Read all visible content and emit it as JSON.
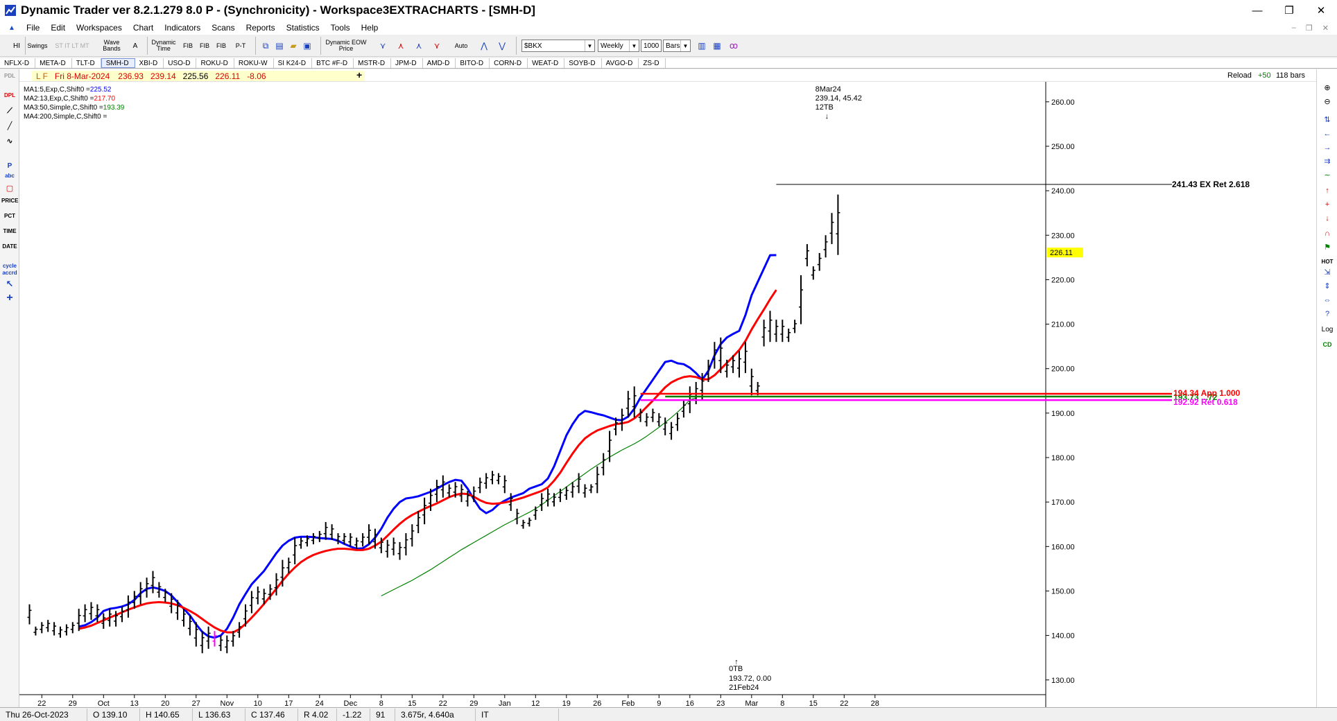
{
  "window": {
    "title": "Dynamic Trader ver 8.2.1.279 8.0 P - (Synchronicity) - Workspace3EXTRACHARTS - [SMH-D]",
    "minimize": "—",
    "restore": "❐",
    "close": "✕"
  },
  "menu": [
    "File",
    "Edit",
    "Workspaces",
    "Chart",
    "Indicators",
    "Scans",
    "Reports",
    "Statistics",
    "Tools",
    "Help"
  ],
  "toolbar": {
    "hi": "HI",
    "swings": "Swings",
    "st_it_lt_mt": "ST IT LT MT",
    "wave_bands": "Wave Bands",
    "a": "A",
    "dynamic_time": "Dynamic Time",
    "fib": "FIB",
    "p_t": "P-T",
    "dynamic_eow_price": "Dynamic EOW Price",
    "auto": "Auto",
    "symbol_value": "$BKX",
    "period_value": "Weekly",
    "bars_count": "1000",
    "bars_label": "Bars"
  },
  "symbol_tabs": [
    "NFLX-D",
    "META-D",
    "TLT-D",
    "SMH-D",
    "XBI-D",
    "USO-D",
    "ROKU-D",
    "ROKU-W",
    "SI K24-D",
    "BTC #F-D",
    "MSTR-D",
    "JPM-D",
    "AMD-D",
    "BITO-D",
    "CORN-D",
    "WEAT-D",
    "SOYB-D",
    "AVGO-D",
    "ZS-D"
  ],
  "active_tab": "SMH-D",
  "info": {
    "flags": "L F",
    "date": "Fri 8-Mar-2024",
    "open": "236.93",
    "high": "239.14",
    "low": "225.56",
    "close": "226.11",
    "change": "-8.06",
    "plus": "+",
    "reload": "Reload",
    "reload_inc": "+50",
    "bar_count": "118 bars"
  },
  "left_tools": [
    "PDL",
    "DPL",
    "P",
    "abc",
    "PRICE",
    "PCT",
    "TIME",
    "DATE",
    "cycle",
    "accrd"
  ],
  "right_tools": [
    "HOT",
    "Log",
    "CD"
  ],
  "ma_legend": [
    {
      "label": "MA1:5,Exp,C,Shift0 =",
      "value": "225.52",
      "color": "#0000ff"
    },
    {
      "label": "MA2:13,Exp,C,Shift0 =",
      "value": "217.70",
      "color": "#ff0000"
    },
    {
      "label": "MA3:50,Simple,C,Shift0 =",
      "value": "193.39",
      "color": "#008000"
    },
    {
      "label": "MA4:200,Simple,C,Shift0 =",
      "value": "",
      "color": "#000000"
    }
  ],
  "annotations": {
    "top_date": "8Mar24",
    "top_values": "239.14, 45.42",
    "top_tb": "12TB",
    "bottom_tb": "0TB",
    "bottom_values": "193.72, 0.00",
    "bottom_date": "21Feb24",
    "level_top": "241.43 EX Ret 2.618",
    "level_a": "194.34 App 1.000",
    "level_b": "193.73 ...72",
    "level_c": "192.92 Ret 0.618",
    "last_price": "226.11"
  },
  "chart_data": {
    "type": "ohlc",
    "y_ticks": [
      130,
      140,
      150,
      160,
      170,
      180,
      190,
      200,
      210,
      220,
      230,
      240,
      250,
      260
    ],
    "ylim": [
      127,
      262
    ],
    "x_ticks": [
      "22",
      "29",
      "Oct",
      "13",
      "20",
      "27",
      "Nov",
      "10",
      "17",
      "24",
      "Dec",
      "8",
      "15",
      "22",
      "29",
      "Jan",
      "12",
      "19",
      "26",
      "Feb",
      "9",
      "16",
      "23",
      "Mar",
      "8",
      "15",
      "22",
      "28"
    ],
    "bars": [
      [
        147,
        142.5
      ],
      [
        142,
        140
      ],
      [
        143,
        140.5
      ],
      [
        143.5,
        140.8
      ],
      [
        143,
        140
      ],
      [
        142,
        139.5
      ],
      [
        142.5,
        140
      ],
      [
        143,
        140.5
      ],
      [
        146,
        141
      ],
      [
        147,
        143
      ],
      [
        147.5,
        143.5
      ],
      [
        147,
        143
      ],
      [
        145,
        141.5
      ],
      [
        146,
        142
      ],
      [
        145.5,
        142
      ],
      [
        146.5,
        143
      ],
      [
        149,
        144
      ],
      [
        150,
        146
      ],
      [
        152,
        147
      ],
      [
        153,
        148.5
      ],
      [
        154.5,
        149.5
      ],
      [
        152,
        148.5
      ],
      [
        150.5,
        147.5
      ],
      [
        149.5,
        145
      ],
      [
        148,
        143.5
      ],
      [
        146,
        142
      ],
      [
        144.5,
        140
      ],
      [
        143,
        137.5
      ],
      [
        141,
        136
      ],
      [
        142,
        137
      ],
      [
        141,
        137.5
      ],
      [
        140,
        136.5
      ],
      [
        140,
        136
      ],
      [
        141,
        137.5
      ],
      [
        143,
        139.5
      ],
      [
        147,
        142
      ],
      [
        150,
        145
      ],
      [
        151,
        147
      ],
      [
        150.5,
        147
      ],
      [
        151.5,
        148
      ],
      [
        154,
        149
      ],
      [
        157,
        151
      ],
      [
        157.5,
        154
      ],
      [
        162,
        156
      ],
      [
        162,
        159.5
      ],
      [
        162.5,
        160
      ],
      [
        163,
        160.5
      ],
      [
        163.5,
        161
      ],
      [
        165.5,
        161.5
      ],
      [
        165,
        161.5
      ],
      [
        163,
        160.5
      ],
      [
        163,
        160.5
      ],
      [
        163,
        160
      ],
      [
        162,
        159.5
      ],
      [
        163,
        160
      ],
      [
        165,
        160.5
      ],
      [
        164,
        159.5
      ],
      [
        162,
        158.5
      ],
      [
        161.5,
        157.5
      ],
      [
        162,
        158
      ],
      [
        161,
        157
      ],
      [
        163,
        158
      ],
      [
        165,
        160
      ],
      [
        168,
        163
      ],
      [
        171,
        165
      ],
      [
        173,
        168
      ],
      [
        175,
        170
      ],
      [
        176,
        171
      ],
      [
        174,
        171
      ],
      [
        174.5,
        171
      ],
      [
        174,
        170
      ],
      [
        172.5,
        169
      ],
      [
        173.5,
        170
      ],
      [
        175.5,
        172
      ],
      [
        176.5,
        173
      ],
      [
        177,
        174
      ],
      [
        176.5,
        174
      ],
      [
        176,
        172
      ],
      [
        172,
        168
      ],
      [
        168.5,
        165
      ],
      [
        166,
        164
      ],
      [
        166.5,
        164.5
      ],
      [
        169,
        166
      ],
      [
        172,
        168
      ],
      [
        173,
        169
      ],
      [
        172,
        169
      ],
      [
        173,
        170
      ],
      [
        173.5,
        170.5
      ],
      [
        174.5,
        171
      ],
      [
        176.5,
        172
      ],
      [
        174,
        171
      ],
      [
        174,
        172
      ],
      [
        178,
        172
      ],
      [
        181,
        176
      ],
      [
        186,
        179
      ],
      [
        189,
        185
      ],
      [
        191,
        186
      ],
      [
        195,
        189
      ],
      [
        196,
        189
      ],
      [
        191,
        188
      ],
      [
        190,
        187
      ],
      [
        191,
        188
      ],
      [
        190,
        187
      ],
      [
        189,
        185
      ],
      [
        188,
        184
      ],
      [
        190,
        186
      ],
      [
        193,
        189
      ],
      [
        196,
        190
      ],
      [
        197,
        192
      ],
      [
        199,
        193
      ],
      [
        202,
        197
      ],
      [
        206,
        200
      ],
      [
        207,
        199
      ],
      [
        202,
        198
      ],
      [
        203,
        199
      ],
      [
        204,
        198
      ],
      [
        206,
        199
      ],
      [
        200,
        194
      ],
      [
        197,
        194
      ],
      [
        211,
        205
      ],
      [
        213,
        206
      ],
      [
        211,
        206
      ],
      [
        211,
        206
      ],
      [
        209,
        206
      ],
      [
        211,
        208
      ],
      [
        221,
        210
      ],
      [
        228,
        223
      ],
      [
        223,
        220
      ],
      [
        226,
        222
      ],
      [
        230,
        225
      ],
      [
        235,
        228
      ],
      [
        239.14,
        225.56
      ]
    ],
    "series": [
      {
        "name": "MA1:5,Exp,C,Shift0",
        "color": "#0000ff",
        "start": 8,
        "values": [
          142,
          142.3,
          143,
          144,
          145.5,
          146,
          146.2,
          146.5,
          147,
          148,
          149.5,
          150.5,
          150.8,
          150.5,
          150,
          149,
          147.5,
          146,
          144.5,
          142.5,
          140.8,
          139.8,
          139.5,
          140,
          141.5,
          144,
          147,
          149.3,
          151.5,
          153,
          154.5,
          156.5,
          158.5,
          160.2,
          161.3,
          162,
          162.2,
          162.2,
          162.1,
          161.9,
          161.8,
          161.7,
          161.3,
          160.6,
          160,
          159.5,
          159.6,
          160.5,
          162,
          164,
          166.5,
          168.5,
          170,
          170.8,
          171,
          171.3,
          171.8,
          172.3,
          173,
          173.8,
          174.5,
          175,
          174.8,
          173,
          170.6,
          168.5,
          167.5,
          168.2,
          169.5,
          170.3,
          171,
          171.5,
          172,
          173,
          173.5,
          174,
          175.3,
          178,
          181.5,
          185,
          187.5,
          189.5,
          190.5,
          190.2,
          189.8,
          189.5,
          189,
          188.5,
          188.4,
          189.2,
          191,
          193.5,
          195.5,
          197.5,
          199.5,
          201.5,
          201.8,
          201.2,
          201,
          200.2,
          199,
          197.5,
          199.5,
          203,
          205.5,
          207,
          207.8,
          208.5,
          212,
          216.5,
          219.5,
          222.5,
          225.5,
          225.52
        ]
      },
      {
        "name": "MA2:13,Exp,C,Shift0",
        "color": "#ff0000",
        "start": 8,
        "values": [
          141.5,
          141.8,
          142.2,
          142.8,
          143.4,
          144,
          144.6,
          145.2,
          145.8,
          146.3,
          146.8,
          147.2,
          147.4,
          147.5,
          147.4,
          147.2,
          146.8,
          146.2,
          145.5,
          144.7,
          143.7,
          142.7,
          141.8,
          141.1,
          140.7,
          140.7,
          141.4,
          142.6,
          144,
          145.5,
          147.1,
          148.8,
          150.5,
          152.3,
          153.9,
          155.3,
          156.5,
          157.4,
          158.1,
          158.6,
          159,
          159.3,
          159.5,
          159.5,
          159.4,
          159.2,
          159.2,
          159.5,
          160.2,
          161.1,
          162.4,
          163.8,
          165.1,
          166.2,
          167.1,
          167.8,
          168.5,
          169.1,
          169.7,
          170.4,
          171.1,
          171.6,
          171.9,
          171.8,
          171.2,
          170.4,
          169.8,
          169.6,
          169.7,
          169.9,
          170.2,
          170.6,
          171,
          171.5,
          172,
          172.5,
          173.3,
          174.8,
          176.6,
          178.8,
          180.9,
          182.8,
          184.3,
          185.3,
          186.1,
          186.6,
          187.1,
          187.5,
          187.7,
          188,
          188.8,
          190,
          191.4,
          192.8,
          194.3,
          195.8,
          196.9,
          197.6,
          198.1,
          198.3,
          198.1,
          197.6,
          197.6,
          198.5,
          199.9,
          201.3,
          202.7,
          204.2,
          206.2,
          208.8,
          211.1,
          213.3,
          215.6,
          217.7
        ]
      },
      {
        "name": "MA3:50,Simple,C,Shift0",
        "color": "#008000",
        "start": 57,
        "values": [
          148.9,
          149.6,
          150.3,
          151,
          151.7,
          152.4,
          153.2,
          154,
          154.8,
          155.7,
          156.6,
          157.5,
          158.4,
          159.3,
          160.1,
          160.9,
          161.7,
          162.5,
          163.3,
          164.1,
          164.9,
          165.6,
          166.3,
          167.0,
          167.7,
          168.5,
          169.4,
          170.4,
          171.4,
          172.4,
          173.4,
          174.4,
          175.4,
          176.4,
          177.4,
          178.3,
          179.2,
          180.1,
          180.9,
          181.7,
          182.4,
          183.1,
          183.9,
          184.8,
          185.8,
          186.8,
          187.9,
          189,
          190.2,
          191.5,
          193.0,
          193.39
        ]
      }
    ],
    "levels": [
      {
        "value": 241.43,
        "color": "#000000",
        "x0": 121,
        "label": "241.43 EX Ret 2.618"
      },
      {
        "value": 194.34,
        "color": "#ff0000",
        "x0": 99,
        "label": "194.34 App 1.000"
      },
      {
        "value": 193.72,
        "color": "#008000",
        "x0": 103,
        "label": "193.73 ...72"
      },
      {
        "value": 192.92,
        "color": "#ff00ff",
        "x0": 99,
        "label": "192.92 Ret 0.618"
      }
    ]
  },
  "status": {
    "date": "Thu 26-Oct-2023",
    "open": "O 139.10",
    "high": "H 140.65",
    "low": "L 136.63",
    "close": "C 137.46",
    "range": "R 4.02",
    "change": "-1.22",
    "count": "91",
    "ratio": "3.675r, 4.640a",
    "it": "IT"
  }
}
